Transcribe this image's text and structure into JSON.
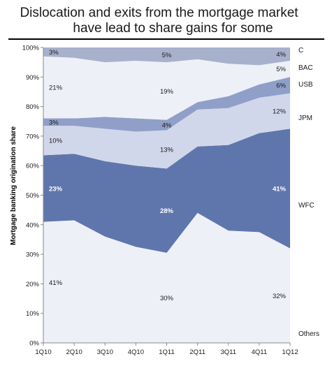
{
  "title_line1": "Dislocation and exits from the mortgage market",
  "title_line2": "have lead to share gains for some",
  "chart_data": {
    "type": "area",
    "stacked": true,
    "ylabel": "Mortgage banking origination share",
    "xlabel": "",
    "ylim": [
      0,
      100
    ],
    "y_ticks": [
      "0%",
      "10%",
      "20%",
      "30%",
      "40%",
      "50%",
      "60%",
      "70%",
      "80%",
      "90%",
      "100%"
    ],
    "categories": [
      "1Q10",
      "2Q10",
      "3Q10",
      "4Q10",
      "1Q11",
      "2Q11",
      "3Q11",
      "4Q11",
      "1Q12"
    ],
    "series": [
      {
        "name": "Others",
        "color": "#eef0f8",
        "values": [
          41,
          41.5,
          36,
          32.5,
          30.5,
          44,
          38,
          37.5,
          32
        ]
      },
      {
        "name": "WFC",
        "color": "#5f76ad",
        "values": [
          22.5,
          22.5,
          25.5,
          27.5,
          28.5,
          22.5,
          29,
          33.5,
          40.5
        ]
      },
      {
        "name": "JPM",
        "color": "#d1d7ea",
        "values": [
          10,
          9.5,
          11,
          11.5,
          13,
          12.5,
          12.5,
          12,
          12
        ]
      },
      {
        "name": "USB",
        "color": "#8f9fc8",
        "values": [
          2.5,
          2.5,
          4,
          4.5,
          3.5,
          2.5,
          4,
          4.5,
          5.5
        ]
      },
      {
        "name": "BAC",
        "color": "#eef0f8",
        "values": [
          21,
          20.5,
          18.5,
          19.5,
          19.5,
          14.5,
          11,
          6.5,
          5.5
        ]
      },
      {
        "name": "C",
        "color": "#a7b1cc",
        "values": [
          3,
          3.5,
          5,
          4.5,
          5,
          4,
          5.5,
          6,
          4.5
        ]
      }
    ],
    "data_labels": [
      {
        "series": "C",
        "category": "1Q10",
        "text": "3%"
      },
      {
        "series": "C",
        "category": "1Q11",
        "text": "5%"
      },
      {
        "series": "C",
        "category": "1Q12",
        "text": "4%"
      },
      {
        "series": "BAC",
        "category": "1Q10",
        "text": "21%"
      },
      {
        "series": "BAC",
        "category": "1Q11",
        "text": "19%"
      },
      {
        "series": "BAC",
        "category": "1Q12",
        "text": "5%"
      },
      {
        "series": "USB",
        "category": "1Q10",
        "text": "3%"
      },
      {
        "series": "USB",
        "category": "1Q11",
        "text": "4%"
      },
      {
        "series": "USB",
        "category": "1Q12",
        "text": "6%"
      },
      {
        "series": "JPM",
        "category": "1Q10",
        "text": "10%"
      },
      {
        "series": "JPM",
        "category": "1Q11",
        "text": "13%"
      },
      {
        "series": "JPM",
        "category": "1Q12",
        "text": "12%"
      },
      {
        "series": "WFC",
        "category": "1Q10",
        "text": "23%"
      },
      {
        "series": "WFC",
        "category": "1Q11",
        "text": "28%"
      },
      {
        "series": "WFC",
        "category": "1Q12",
        "text": "41%"
      },
      {
        "series": "Others",
        "category": "1Q10",
        "text": "41%"
      },
      {
        "series": "Others",
        "category": "1Q11",
        "text": "30%"
      },
      {
        "series": "Others",
        "category": "1Q12",
        "text": "32%"
      }
    ],
    "legend_placement": "right",
    "grid": false
  }
}
